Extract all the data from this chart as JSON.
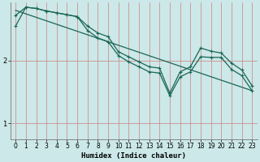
{
  "xlabel": "Humidex (Indice chaleur)",
  "ylabel": "",
  "background_color": "#cce8e8",
  "grid_color_v": "#d08080",
  "grid_color_h": "#d08080",
  "line_color": "#1a6655",
  "xlim": [
    -0.5,
    23.5
  ],
  "ylim": [
    0.75,
    2.92
  ],
  "yticks": [
    1,
    2
  ],
  "xticks": [
    0,
    1,
    2,
    3,
    4,
    5,
    6,
    7,
    8,
    9,
    10,
    11,
    12,
    13,
    14,
    15,
    16,
    17,
    18,
    19,
    20,
    21,
    22,
    23
  ],
  "line1_x": [
    0,
    1,
    2,
    3,
    4,
    5,
    6,
    7,
    8,
    9,
    10,
    11,
    12,
    13,
    14,
    15,
    16,
    17,
    18,
    19,
    20,
    21,
    22,
    23
  ],
  "line1_y": [
    2.72,
    2.85,
    2.83,
    2.79,
    2.76,
    2.73,
    2.7,
    2.55,
    2.44,
    2.38,
    2.14,
    2.06,
    1.98,
    1.9,
    1.88,
    1.48,
    1.82,
    1.9,
    2.2,
    2.15,
    2.12,
    1.96,
    1.85,
    1.6
  ],
  "line2_x": [
    0,
    1,
    2,
    3,
    4,
    5,
    6,
    7,
    8,
    9,
    10,
    11,
    12,
    13,
    14,
    15,
    16,
    17,
    18,
    19,
    20,
    21,
    22,
    23
  ],
  "line2_y": [
    2.55,
    2.85,
    2.83,
    2.79,
    2.76,
    2.73,
    2.7,
    2.48,
    2.36,
    2.3,
    2.08,
    1.98,
    1.9,
    1.82,
    1.8,
    1.44,
    1.74,
    1.82,
    2.06,
    2.05,
    2.05,
    1.86,
    1.76,
    1.52
  ],
  "line3_x": [
    0,
    23
  ],
  "line3_y": [
    2.8,
    1.52
  ],
  "marker_size": 3.5,
  "line_width": 0.9,
  "tick_fontsize": 5.5,
  "label_fontsize": 6.5
}
